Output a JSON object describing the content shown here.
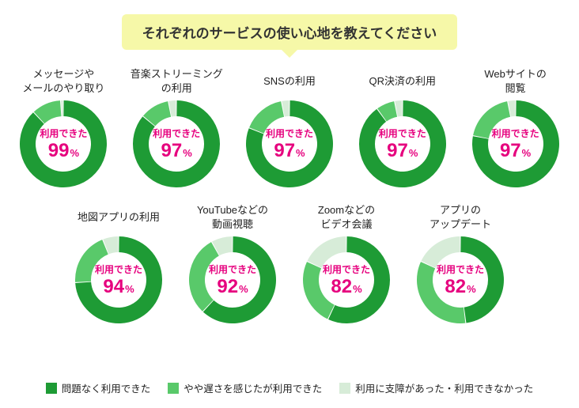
{
  "title": "それぞれのサービスの使い心地を教えてください",
  "colors": {
    "seg_a": "#1e9b35",
    "seg_b": "#59c96a",
    "seg_c": "#d7ecd8",
    "accent": "#e6007e",
    "title_bg": "#f6f8a8",
    "text": "#222222"
  },
  "donut": {
    "size": 110,
    "thickness": 20
  },
  "center_label": "利用できた",
  "pct_symbol": "%",
  "legend": [
    {
      "label": "問題なく利用できた",
      "color": "#1e9b35"
    },
    {
      "label": "やや遅さを感じたが利用できた",
      "color": "#59c96a"
    },
    {
      "label": "利用に支障があった・利用できなかった",
      "color": "#d7ecd8"
    }
  ],
  "rows": [
    [
      {
        "label": "メッセージや\nメールのやり取り",
        "segments": [
          88,
          11,
          1
        ],
        "usable_pct": 99
      },
      {
        "label": "音楽ストリーミング\nの利用",
        "segments": [
          86,
          11,
          3
        ],
        "usable_pct": 97
      },
      {
        "label": "SNSの利用",
        "segments": [
          81,
          16,
          3
        ],
        "usable_pct": 97
      },
      {
        "label": "QR決済の利用",
        "segments": [
          90,
          7,
          3
        ],
        "usable_pct": 97
      },
      {
        "label": "Webサイトの\n閲覧",
        "segments": [
          78,
          19,
          3
        ],
        "usable_pct": 97
      }
    ],
    [
      {
        "label": "地図アプリの利用",
        "segments": [
          74,
          20,
          6
        ],
        "usable_pct": 94
      },
      {
        "label": "YouTubeなどの\n動画視聴",
        "segments": [
          62,
          30,
          8
        ],
        "usable_pct": 92
      },
      {
        "label": "Zoomなどの\nビデオ会議",
        "segments": [
          57,
          25,
          18
        ],
        "usable_pct": 82
      },
      {
        "label": "アプリの\nアップデート",
        "segments": [
          48,
          34,
          18
        ],
        "usable_pct": 82
      }
    ]
  ]
}
